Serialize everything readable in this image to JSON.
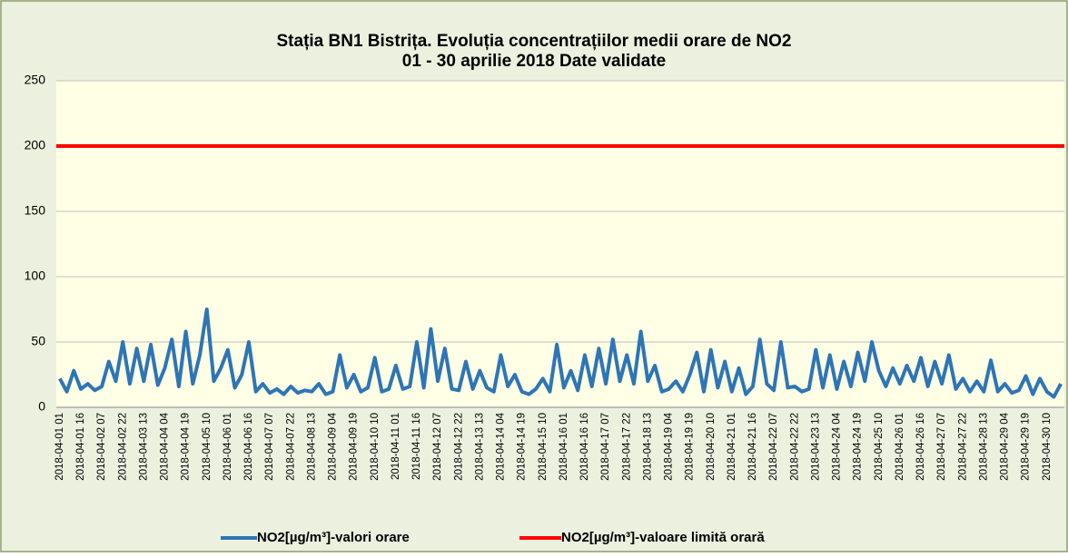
{
  "chart_data": {
    "type": "line",
    "title": "Stația BN1 Bistrița. Evoluția concentrațiilor medii orare de NO2",
    "subtitle": "01 - 30 aprilie 2018 Date validate",
    "categories": [
      "2018-04-01 01",
      null,
      null,
      "2018-04-01 16",
      null,
      null,
      "2018-04-02 07",
      null,
      null,
      "2018-04-02 22",
      null,
      null,
      "2018-04-03 13",
      null,
      null,
      "2018-04-04 04",
      null,
      null,
      "2018-04-04 19",
      null,
      null,
      "2018-04-05 10",
      null,
      null,
      "2018-04-06 01",
      null,
      null,
      "2018-04-06 16",
      null,
      null,
      "2018-04-07 07",
      null,
      null,
      "2018-04-07 22",
      null,
      null,
      "2018-04-08 13",
      null,
      null,
      "2018-04-09 04",
      null,
      null,
      "2018-04-09 19",
      null,
      null,
      "2018-04-10 10",
      null,
      null,
      "2018-04-11 01",
      null,
      null,
      "2018-04-11 16",
      null,
      null,
      "2018-04-12 07",
      null,
      null,
      "2018-04-12 22",
      null,
      null,
      "2018-04-13 13",
      null,
      null,
      "2018-04-14 04",
      null,
      null,
      "2018-04-14 19",
      null,
      null,
      "2018-04-15 10",
      null,
      null,
      "2018-04-16 01",
      null,
      null,
      "2018-04-16 16",
      null,
      null,
      "2018-04-17 07",
      null,
      null,
      "2018-04-17 22",
      null,
      null,
      "2018-04-18 13",
      null,
      null,
      "2018-04-19 04",
      null,
      null,
      "2018-04-19 19",
      null,
      null,
      "2018-04-20 10",
      null,
      null,
      "2018-04-21 01",
      null,
      null,
      "2018-04-21 16",
      null,
      null,
      "2018-04-22 07",
      null,
      null,
      "2018-04-22 22",
      null,
      null,
      "2018-04-23 13",
      null,
      null,
      "2018-04-24 04",
      null,
      null,
      "2018-04-24 19",
      null,
      null,
      "2018-04-25 10",
      null,
      null,
      "2018-04-26 01",
      null,
      null,
      "2018-04-26 16",
      null,
      null,
      "2018-04-27 07",
      null,
      null,
      "2018-04-27 22",
      null,
      null,
      "2018-04-28 13",
      null,
      null,
      "2018-04-29 04",
      null,
      null,
      "2018-04-29 19",
      null,
      null,
      "2018-04-30 10",
      null,
      null
    ],
    "series": [
      {
        "name": "NO2[µg/m³]-valori orare",
        "color": "#2e75b6",
        "values": [
          22,
          12,
          28,
          14,
          18,
          13,
          16,
          35,
          20,
          50,
          18,
          45,
          20,
          48,
          17,
          30,
          52,
          16,
          58,
          18,
          40,
          75,
          20,
          30,
          44,
          15,
          25,
          50,
          12,
          18,
          11,
          14,
          10,
          16,
          11,
          13,
          12,
          18,
          10,
          12,
          40,
          15,
          25,
          12,
          15,
          38,
          12,
          14,
          32,
          14,
          16,
          50,
          15,
          60,
          20,
          45,
          14,
          13,
          35,
          14,
          28,
          15,
          12,
          40,
          16,
          25,
          12,
          10,
          14,
          22,
          12,
          48,
          15,
          28,
          13,
          40,
          16,
          45,
          18,
          52,
          20,
          40,
          18,
          58,
          20,
          32,
          12,
          14,
          20,
          12,
          25,
          42,
          12,
          44,
          15,
          35,
          12,
          30,
          10,
          16,
          52,
          18,
          13,
          50,
          15,
          16,
          12,
          14,
          44,
          15,
          40,
          14,
          35,
          16,
          42,
          20,
          50,
          28,
          16,
          30,
          18,
          32,
          20,
          38,
          16,
          35,
          18,
          40,
          14,
          22,
          12,
          20,
          12,
          36,
          12,
          18,
          11,
          13,
          24,
          10,
          22,
          12,
          8,
          18
        ]
      }
    ],
    "limit_line": {
      "name": "NO2[µg/m³]-valoare limită orară",
      "color": "#ff0000",
      "value": 200
    },
    "ylim": [
      0,
      250
    ],
    "yticks": [
      0,
      50,
      100,
      150,
      200,
      250
    ],
    "grid": true
  }
}
